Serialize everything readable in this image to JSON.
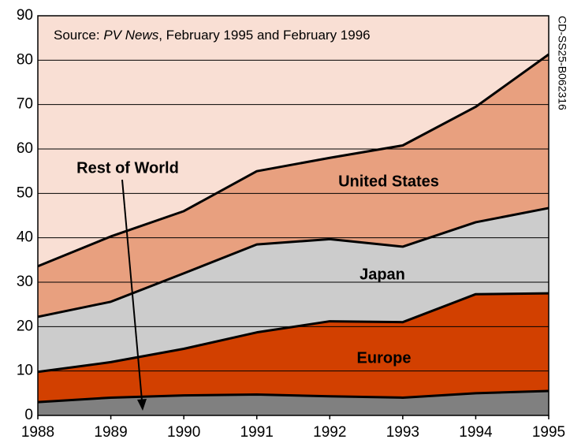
{
  "chart_data": {
    "type": "stacked_area",
    "source": [
      "Source: ",
      "PV News",
      ", February 1995 and February 1996"
    ],
    "side_label": "CD-SS25-B062316",
    "x": [
      1988,
      1989,
      1990,
      1991,
      1992,
      1993,
      1994,
      1995
    ],
    "xlim": [
      1988,
      1995
    ],
    "xticks": [
      1988,
      1989,
      1990,
      1991,
      1992,
      1993,
      1994,
      1995
    ],
    "ylim": [
      0,
      90
    ],
    "yticks": [
      0,
      10,
      20,
      30,
      40,
      50,
      60,
      70,
      80,
      90
    ],
    "grid": true,
    "background": "#f9dfd4",
    "series": [
      {
        "name": "Rest of World",
        "color": "#808080",
        "values": [
          3,
          4,
          4.5,
          4.7,
          4.3,
          4,
          5,
          5.5
        ]
      },
      {
        "name": "Europe",
        "color": "#d24000",
        "values": [
          6.8,
          8,
          10.5,
          14,
          16.9,
          17,
          22.3,
          22
        ]
      },
      {
        "name": "Japan",
        "color": "#cccccc",
        "values": [
          12.4,
          13.6,
          17,
          19.8,
          18.5,
          17,
          16.2,
          19.2
        ]
      },
      {
        "name": "United States",
        "color": "#e8a07f",
        "values": [
          11.4,
          14.7,
          14,
          16.5,
          18.3,
          22.8,
          26,
          34.6
        ]
      }
    ]
  }
}
